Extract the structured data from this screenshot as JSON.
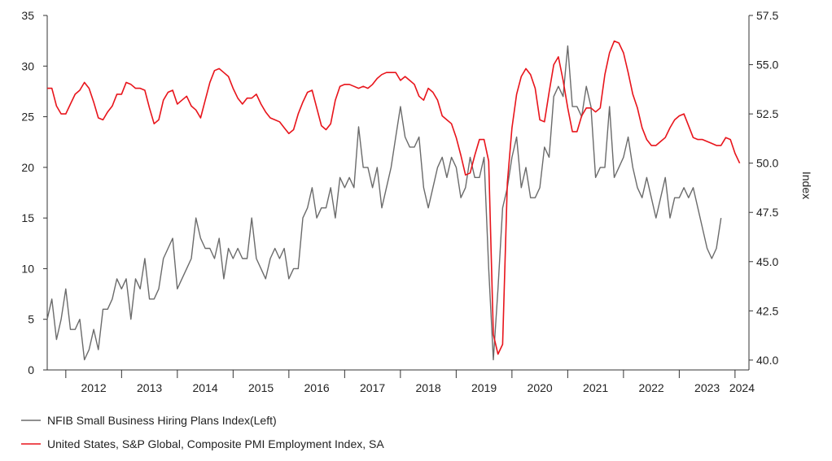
{
  "chart_data": {
    "type": "line",
    "x_ticks": [
      "2012",
      "2013",
      "2014",
      "2015",
      "2016",
      "2017",
      "2018",
      "2019",
      "2020",
      "2021",
      "2022",
      "2023",
      "2024"
    ],
    "xlim": [
      "2011-09",
      "2024-04"
    ],
    "left_axis": {
      "ylim": [
        0,
        35
      ],
      "ticks": [
        "0",
        "5",
        "10",
        "15",
        "20",
        "25",
        "30",
        "35"
      ]
    },
    "right_axis": {
      "label": "Index",
      "ylim": [
        39.5,
        57.5
      ],
      "ticks": [
        "40.0",
        "42.5",
        "45.0",
        "47.5",
        "50.0",
        "52.5",
        "55.0",
        "57.5"
      ]
    },
    "grid": false,
    "legend_position": "bottom-left",
    "series": [
      {
        "name": "NFIB Small Business Hiring Plans Index(Left)",
        "axis": "left",
        "color": "#6b6b6b",
        "start": "2011-09",
        "frequency": "monthly",
        "values": [
          5,
          7,
          3,
          5,
          8,
          4,
          4,
          5,
          1,
          2,
          4,
          2,
          6,
          6,
          7,
          9,
          8,
          9,
          5,
          9,
          8,
          11,
          7,
          7,
          8,
          11,
          12,
          13,
          8,
          9,
          10,
          11,
          15,
          13,
          12,
          12,
          11,
          13,
          9,
          12,
          11,
          12,
          11,
          11,
          15,
          11,
          10,
          9,
          11,
          12,
          11,
          12,
          9,
          10,
          10,
          15,
          16,
          18,
          15,
          16,
          16,
          18,
          15,
          19,
          18,
          19,
          18,
          24,
          20,
          20,
          18,
          20,
          16,
          18,
          20,
          23,
          26,
          23,
          22,
          22,
          23,
          18,
          16,
          18,
          20,
          21,
          19,
          21,
          20,
          17,
          18,
          21,
          19,
          19,
          21,
          10,
          1,
          8,
          16,
          18,
          21,
          23,
          18,
          20,
          17,
          17,
          18,
          22,
          21,
          27,
          28,
          27,
          32,
          26,
          26,
          25,
          28,
          26,
          19,
          20,
          20,
          26,
          19,
          20,
          21,
          23,
          20,
          18,
          17,
          19,
          17,
          15,
          17,
          19,
          15,
          17,
          17,
          18,
          17,
          18,
          16,
          14,
          12,
          11,
          12,
          15
        ]
      },
      {
        "name": "United States, S&P Global, Composite PMI Employment Index, SA",
        "axis": "right",
        "color": "#e8141b",
        "start": "2011-09",
        "frequency": "monthly",
        "values": [
          53.8,
          53.8,
          52.9,
          52.5,
          52.5,
          53.0,
          53.5,
          53.7,
          54.1,
          53.8,
          53.1,
          52.3,
          52.2,
          52.6,
          52.9,
          53.5,
          53.5,
          54.1,
          54.0,
          53.8,
          53.8,
          53.7,
          52.8,
          52.0,
          52.2,
          53.2,
          53.6,
          53.7,
          53.0,
          53.2,
          53.4,
          52.9,
          52.7,
          52.3,
          53.2,
          54.1,
          54.7,
          54.8,
          54.6,
          54.4,
          53.8,
          53.3,
          53.0,
          53.3,
          53.3,
          53.5,
          53.0,
          52.6,
          52.3,
          52.2,
          52.1,
          51.8,
          51.5,
          51.7,
          52.5,
          53.1,
          53.6,
          53.7,
          52.8,
          51.9,
          51.7,
          52.0,
          53.2,
          53.9,
          54.0,
          54.0,
          53.9,
          53.8,
          53.9,
          53.8,
          54.0,
          54.3,
          54.5,
          54.6,
          54.6,
          54.6,
          54.2,
          54.4,
          54.2,
          54.0,
          53.4,
          53.2,
          53.8,
          53.6,
          53.2,
          52.4,
          52.2,
          52.0,
          51.3,
          50.4,
          49.4,
          49.5,
          50.4,
          51.2,
          51.2,
          50.1,
          41.3,
          40.3,
          40.8,
          49.0,
          51.8,
          53.5,
          54.4,
          54.8,
          54.5,
          53.8,
          52.2,
          52.1,
          53.6,
          55.0,
          55.4,
          54.2,
          52.8,
          51.6,
          51.6,
          52.4,
          52.8,
          52.8,
          52.6,
          52.8,
          54.5,
          55.6,
          56.2,
          56.1,
          55.6,
          54.6,
          53.5,
          52.8,
          51.8,
          51.2,
          50.9,
          50.9,
          51.1,
          51.3,
          51.8,
          52.2,
          52.4,
          52.5,
          51.9,
          51.3,
          51.2,
          51.2,
          51.1,
          51.0,
          50.9,
          50.9,
          51.3,
          51.2,
          50.5,
          50.0
        ]
      }
    ]
  }
}
